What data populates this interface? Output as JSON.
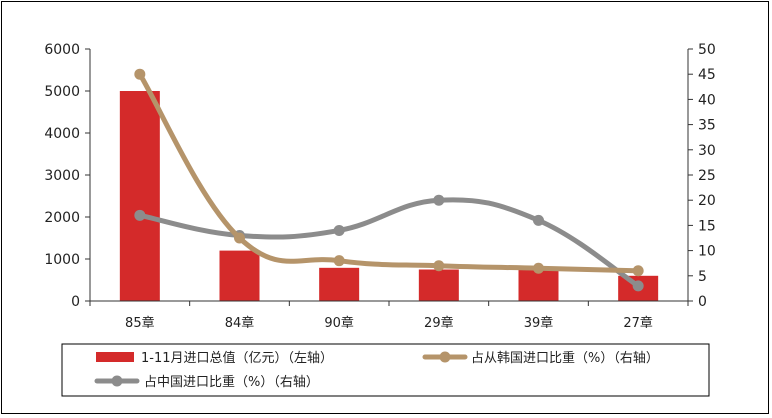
{
  "chart_data": {
    "type": "bar",
    "categories": [
      "85章",
      "84章",
      "90章",
      "29章",
      "39章",
      "27章"
    ],
    "series": [
      {
        "name": "1-11月进口总值（亿元）（左轴）",
        "type": "bar",
        "axis": "left",
        "color": "#d42a2a",
        "values": [
          5000,
          1200,
          790,
          750,
          740,
          600
        ]
      },
      {
        "name": "占从韩国进口比重（%）（右轴）",
        "type": "line",
        "axis": "right",
        "color": "#b5946a",
        "values": [
          45,
          12.5,
          8,
          7,
          6.5,
          6
        ]
      },
      {
        "name": "占中国进口比重（%）（右轴）",
        "type": "line",
        "axis": "right",
        "color": "#8c8c8c",
        "values": [
          17,
          13,
          14,
          20,
          16,
          3
        ]
      }
    ],
    "left_axis": {
      "ticks": [
        "0",
        "1000",
        "2000",
        "3000",
        "4000",
        "5000",
        "6000"
      ],
      "ylim": [
        0,
        6000
      ]
    },
    "right_axis": {
      "ticks": [
        "0",
        "5",
        "10",
        "15",
        "20",
        "25",
        "30",
        "35",
        "40",
        "45",
        "50"
      ],
      "ylim": [
        0,
        50
      ]
    },
    "legend_position": "bottom",
    "grid": false
  }
}
